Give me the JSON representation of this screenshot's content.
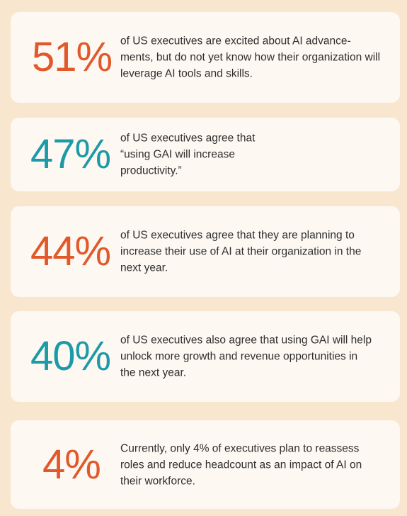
{
  "stats": [
    {
      "value": "51%",
      "text": "of US executives are excited about AI advance-ments, but do not yet know how their organization will leverage AI tools and skills.",
      "color": "#e1592b"
    },
    {
      "value": "47%",
      "text": "of US executives agree that “using GAI will increase productivity.”",
      "color": "#1d9aa7"
    },
    {
      "value": "44%",
      "text": "of US executives agree that they are planning to increase their use of AI at their organization in the next year.",
      "color": "#e1592b"
    },
    {
      "value": "40%",
      "text": "of US executives also agree that using GAI will help unlock more growth and revenue opportunities in the next year.",
      "color": "#1d9aa7"
    },
    {
      "value": "4%",
      "text": "Currently, only 4% of executives plan to reassess roles and reduce headcount as an impact of AI on their workforce.",
      "color": "#e1592b"
    }
  ]
}
